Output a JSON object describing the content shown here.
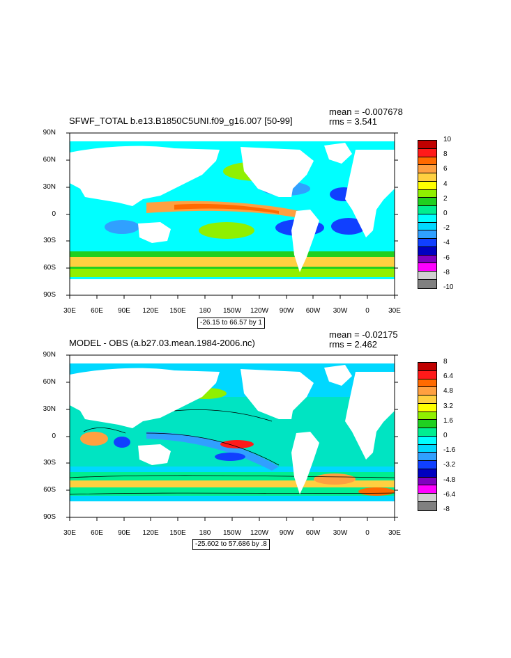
{
  "panels": [
    {
      "title": "SFWF_TOTAL b.e13.B1850C5UNI.f09_g16.007 [50-99]",
      "mean": "mean = -0.007678",
      "rms": "rms = 3.541",
      "range": "-26.15 to 66.57 by 1",
      "lat_labels": [
        "90N",
        "60N",
        "30N",
        "0",
        "30S",
        "60S",
        "90S"
      ],
      "lon_labels": [
        "30E",
        "60E",
        "90E",
        "120E",
        "150E",
        "180",
        "150W",
        "120W",
        "90W",
        "60W",
        "30W",
        "0",
        "30E"
      ],
      "colorbar_labels": [
        "10",
        "8",
        "6",
        "4",
        "2",
        "0",
        "-2",
        "-4",
        "-6",
        "-8",
        "-10"
      ]
    },
    {
      "title": "MODEL - OBS (a.b27.03.mean.1984-2006.nc)",
      "mean": "mean = -0.02175",
      "rms": "rms = 2.462",
      "range": "-25.602 to 57.686 by .8",
      "lat_labels": [
        "90N",
        "60N",
        "30N",
        "0",
        "30S",
        "60S",
        "90S"
      ],
      "lon_labels": [
        "30E",
        "60E",
        "90E",
        "120E",
        "150E",
        "180",
        "150W",
        "120W",
        "90W",
        "60W",
        "30W",
        "0",
        "30E"
      ],
      "colorbar_labels": [
        "8",
        "6.4",
        "4.8",
        "3.2",
        "1.6",
        "0",
        "-1.6",
        "-3.2",
        "-4.8",
        "-6.4",
        "-8"
      ]
    }
  ],
  "palette": [
    "#c00000",
    "#ff1a1a",
    "#ff6a00",
    "#ffa040",
    "#ffd040",
    "#ffff00",
    "#90f000",
    "#20d020",
    "#00ee90",
    "#00ffff",
    "#00d8ff",
    "#30a0ff",
    "#1040ff",
    "#0000c0",
    "#8000c0",
    "#ff00ff",
    "#d0d0d0",
    "#808080"
  ]
}
